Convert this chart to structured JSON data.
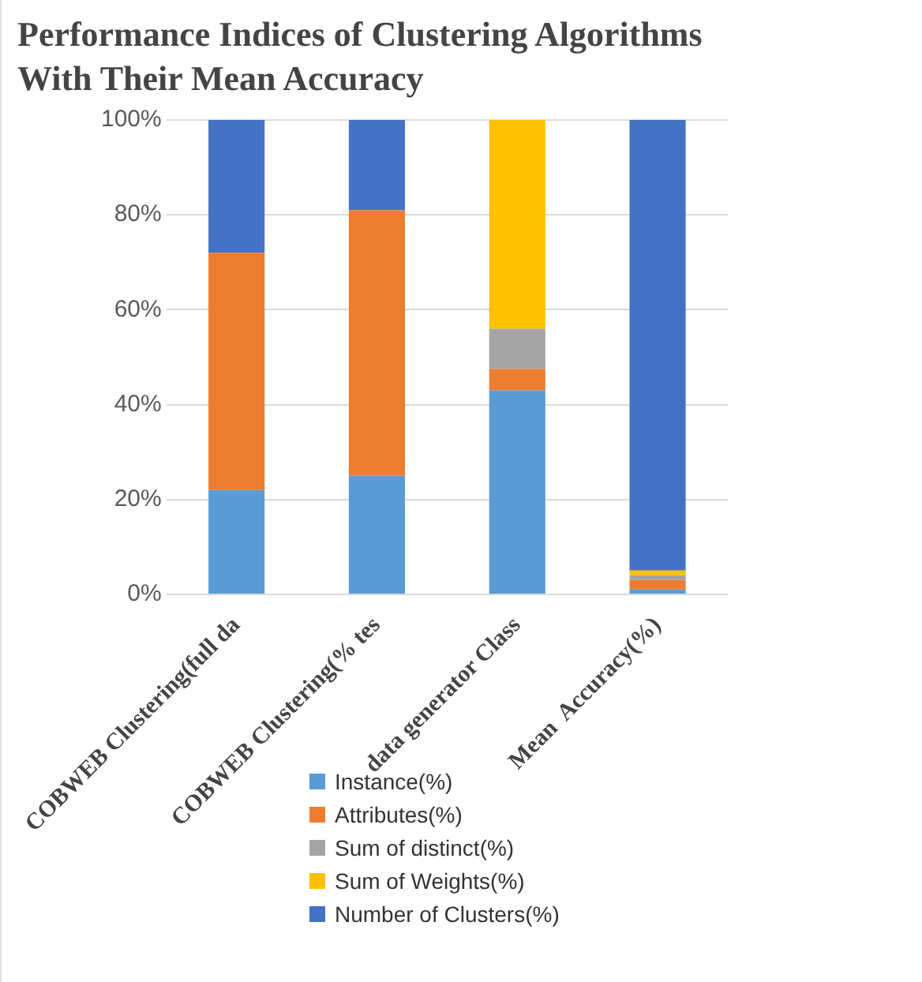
{
  "chart_data": {
    "type": "bar",
    "title": "Performance Indices of Clustering Algorithms With Their Mean Accuracy",
    "categories": [
      "COBWEB Clustering(full da",
      "COBWEB Clustering(% tes",
      "data generator Class",
      "Mean  Accuracy(%)"
    ],
    "stacked": true,
    "ylim": [
      0,
      100
    ],
    "yticks": [
      {
        "value": 0,
        "label": "0%"
      },
      {
        "value": 20,
        "label": "20%"
      },
      {
        "value": 40,
        "label": "40%"
      },
      {
        "value": 60,
        "label": "60%"
      },
      {
        "value": 80,
        "label": "80%"
      },
      {
        "value": 100,
        "label": "100%"
      }
    ],
    "grid": "y",
    "legend": "bottom",
    "series": [
      {
        "name": "Instance(%)",
        "color": "#5b9bd5",
        "values": [
          22,
          25,
          43,
          1
        ]
      },
      {
        "name": "Attributes(%)",
        "color": "#ed7d31",
        "values": [
          50,
          56,
          4.5,
          2
        ]
      },
      {
        "name": "Sum of distinct(%)",
        "color": "#a5a5a5",
        "values": [
          0,
          0,
          8.5,
          1
        ]
      },
      {
        "name": "Sum of Weights(%)",
        "color": "#ffc000",
        "values": [
          0,
          0,
          44,
          1
        ]
      },
      {
        "name": "Number of Clusters(%)",
        "color": "#4472c4",
        "values": [
          28,
          19,
          0,
          95
        ]
      }
    ]
  }
}
